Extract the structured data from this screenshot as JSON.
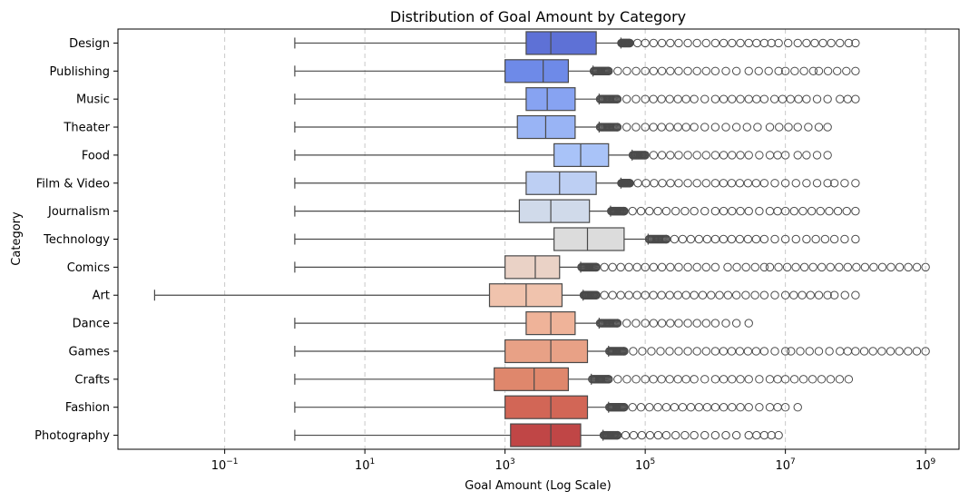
{
  "chart_data": {
    "type": "boxplot",
    "orientation": "horizontal",
    "title": "Distribution of Goal Amount by Category",
    "xlabel": "Goal Amount (Log Scale)",
    "ylabel": "Category",
    "xscale": "log",
    "xlim": [
      0.003,
      3000000000
    ],
    "xticks": [
      {
        "value": 0.1,
        "base": "10",
        "exp": "−1"
      },
      {
        "value": 10,
        "base": "10",
        "exp": "1"
      },
      {
        "value": 1000,
        "base": "10",
        "exp": "3"
      },
      {
        "value": 100000,
        "base": "10",
        "exp": "5"
      },
      {
        "value": 10000000,
        "base": "10",
        "exp": "7"
      },
      {
        "value": 1000000000,
        "base": "10",
        "exp": "9"
      }
    ],
    "grid": "vertical dashed",
    "series": [
      {
        "category": "Design",
        "color": "#5e71d6",
        "whisker_low": 1,
        "q1": 2000,
        "median": 4500,
        "q3": 20000,
        "whisker_high": 45000,
        "outliers": [
          60000,
          100000,
          300000,
          1000000,
          3000000,
          5000000,
          8000000,
          15000000,
          20000000,
          45000000,
          80000000,
          100000000
        ]
      },
      {
        "category": "Publishing",
        "color": "#6e8ae8",
        "whisker_low": 1,
        "q1": 1000,
        "median": 3500,
        "q3": 8000,
        "whisker_high": 18000,
        "outliers": [
          30000,
          100000,
          300000,
          1000000,
          2000000,
          3000000,
          8000000,
          10000000,
          25000000,
          30000000,
          100000000
        ]
      },
      {
        "category": "Music",
        "color": "#87a3f2",
        "whisker_low": 1,
        "q1": 2000,
        "median": 4000,
        "q3": 10000,
        "whisker_high": 22000,
        "outliers": [
          40000,
          100000,
          500000,
          1000000,
          3000000,
          5000000,
          7000000,
          20000000,
          40000000,
          60000000,
          100000000
        ]
      },
      {
        "category": "Theater",
        "color": "#99b4f5",
        "whisker_low": 1,
        "q1": 1500,
        "median": 3800,
        "q3": 10000,
        "whisker_high": 22000,
        "outliers": [
          40000,
          100000,
          500000,
          1000000,
          2000000,
          4000000,
          6000000,
          15000000,
          30000000,
          40000000
        ]
      },
      {
        "category": "Food",
        "color": "#a9c3f8",
        "whisker_low": 1,
        "q1": 5000,
        "median": 12000,
        "q3": 30000,
        "whisker_high": 65000,
        "outliers": [
          100000,
          300000,
          1000000,
          3000000,
          6000000,
          10000000,
          15000000,
          20000000,
          40000000
        ]
      },
      {
        "category": "Film & Video",
        "color": "#bdcff3",
        "whisker_low": 1,
        "q1": 2000,
        "median": 6000,
        "q3": 20000,
        "whisker_high": 45000,
        "outliers": [
          60000,
          300000,
          1000000,
          5000000,
          10000000,
          20000000,
          40000000,
          50000000,
          70000000,
          100000000
        ]
      },
      {
        "category": "Journalism",
        "color": "#d0daea",
        "whisker_low": 1,
        "q1": 1600,
        "median": 4500,
        "q3": 16000,
        "whisker_high": 32000,
        "outliers": [
          50000,
          200000,
          500000,
          1000000,
          3000000,
          6000000,
          10000000,
          100000000
        ]
      },
      {
        "category": "Technology",
        "color": "#dcdcdc",
        "whisker_low": 1,
        "q1": 5000,
        "median": 15000,
        "q3": 50000,
        "whisker_high": 110000,
        "outliers": [
          200000,
          1000000,
          5000000,
          10000000,
          20000000,
          50000000,
          70000000,
          100000000
        ]
      },
      {
        "category": "Comics",
        "color": "#ead2c6",
        "whisker_low": 1,
        "q1": 1000,
        "median": 2700,
        "q3": 6000,
        "whisker_high": 12000,
        "outliers": [
          20000,
          100000,
          300000,
          1000000,
          1500000,
          5000000,
          6000000,
          1000000000
        ]
      },
      {
        "category": "Art",
        "color": "#f0c3ad",
        "whisker_low": 0.01,
        "q1": 600,
        "median": 2000,
        "q3": 6500,
        "whisker_high": 13000,
        "outliers": [
          20000,
          100000,
          500000,
          2000000,
          5000000,
          10000000,
          30000000,
          40000000,
          50000000,
          100000000
        ]
      },
      {
        "category": "Dance",
        "color": "#efb399",
        "whisker_low": 1,
        "q1": 2000,
        "median": 4500,
        "q3": 10000,
        "whisker_high": 22000,
        "outliers": [
          40000,
          100000,
          300000,
          1000000,
          2000000,
          3000000
        ]
      },
      {
        "category": "Games",
        "color": "#e8a186",
        "whisker_low": 1,
        "q1": 1000,
        "median": 4500,
        "q3": 15000,
        "whisker_high": 30000,
        "outliers": [
          50000,
          300000,
          1000000,
          5000000,
          10000000,
          12000000,
          30000000,
          60000000,
          100000000,
          1000000000
        ]
      },
      {
        "category": "Crafts",
        "color": "#df876c",
        "whisker_low": 1,
        "q1": 700,
        "median": 2600,
        "q3": 8000,
        "whisker_high": 17000,
        "outliers": [
          30000,
          100000,
          500000,
          1000000,
          3000000,
          6000000,
          10000000,
          80000000
        ]
      },
      {
        "category": "Fashion",
        "color": "#d26656",
        "whisker_low": 1,
        "q1": 1000,
        "median": 4500,
        "q3": 15000,
        "whisker_high": 30000,
        "outliers": [
          50000,
          200000,
          1000000,
          3000000,
          6000000,
          10000000,
          15000000
        ]
      },
      {
        "category": "Photography",
        "color": "#c04646",
        "whisker_low": 1,
        "q1": 1200,
        "median": 4500,
        "q3": 12000,
        "whisker_high": 25000,
        "outliers": [
          40000,
          200000,
          500000,
          1000000,
          2000000,
          3000000,
          5000000,
          8000000
        ]
      }
    ]
  }
}
